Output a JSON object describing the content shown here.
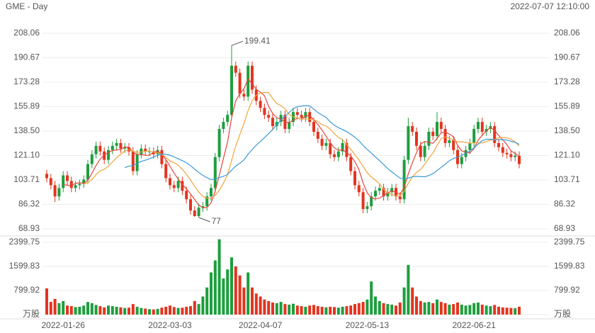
{
  "header": {
    "title": "GME - Day",
    "timestamp": "2022-07-07 12:10:00"
  },
  "chart_data": {
    "type": "candlestick",
    "up_color": "#1e9e3e",
    "down_color": "#e3341f",
    "grid": true,
    "ylim": [
      68.93,
      208.06
    ],
    "yticks": [
      208.06,
      190.67,
      173.28,
      155.89,
      {
        "value": 138.5,
        "label": "138.50"
      },
      {
        "value": 121.1,
        "label": "121.10"
      },
      103.71,
      86.32,
      68.93
    ],
    "volume_ylim": [
      0,
      2399.75
    ],
    "volume_yticks": [
      2399.75,
      1599.83,
      799.92,
      {
        "value": 0,
        "label": "万股"
      }
    ],
    "categories": [
      null,
      null,
      null,
      null,
      "2022-01-26",
      null,
      null,
      null,
      null,
      null,
      null,
      null,
      null,
      null,
      null,
      null,
      null,
      null,
      null,
      null,
      null,
      null,
      null,
      null,
      null,
      null,
      null,
      null,
      null,
      null,
      "2022-03-03",
      null,
      null,
      null,
      null,
      null,
      null,
      null,
      null,
      null,
      null,
      null,
      null,
      null,
      null,
      null,
      null,
      null,
      null,
      null,
      null,
      null,
      "2022-04-07",
      null,
      null,
      null,
      null,
      null,
      null,
      null,
      null,
      null,
      null,
      null,
      null,
      null,
      null,
      null,
      null,
      null,
      null,
      null,
      null,
      null,
      null,
      null,
      null,
      null,
      "2022-05-13",
      null,
      null,
      null,
      null,
      null,
      null,
      null,
      null,
      null,
      null,
      null,
      null,
      null,
      null,
      null,
      null,
      null,
      null,
      null,
      null,
      null,
      null,
      null,
      null,
      null,
      "2022-06-21",
      null,
      null,
      null,
      null,
      null,
      null,
      null,
      null,
      null,
      null,
      null
    ],
    "candles": [
      [
        108,
        111,
        102,
        105
      ],
      [
        105,
        108,
        97,
        100
      ],
      [
        100,
        103,
        88,
        92
      ],
      [
        92,
        101,
        89,
        98
      ],
      [
        98,
        110,
        95,
        107
      ],
      [
        107,
        110,
        100,
        103
      ],
      [
        103,
        106,
        95,
        98
      ],
      [
        98,
        103,
        95,
        100
      ],
      [
        100,
        104,
        97,
        101
      ],
      [
        101,
        107,
        98,
        104
      ],
      [
        104,
        118,
        101,
        115
      ],
      [
        115,
        125,
        112,
        122
      ],
      [
        122,
        131,
        119,
        128
      ],
      [
        128,
        131,
        121,
        124
      ],
      [
        124,
        127,
        115,
        118
      ],
      [
        118,
        128,
        115,
        125
      ],
      [
        125,
        131,
        122,
        128
      ],
      [
        128,
        133,
        125,
        130
      ],
      [
        130,
        133,
        123,
        126
      ],
      [
        126,
        130,
        123,
        127
      ],
      [
        127,
        130,
        121,
        124
      ],
      [
        124,
        127,
        107,
        110
      ],
      [
        110,
        125,
        107,
        122
      ],
      [
        122,
        129,
        119,
        126
      ],
      [
        126,
        129,
        121,
        124
      ],
      [
        124,
        127,
        121,
        124
      ],
      [
        124,
        127,
        119,
        122
      ],
      [
        122,
        128,
        119,
        125
      ],
      [
        125,
        128,
        112,
        115
      ],
      [
        115,
        118,
        102,
        105
      ],
      [
        105,
        108,
        97,
        100
      ],
      [
        100,
        103,
        95,
        98
      ],
      [
        98,
        106,
        95,
        103
      ],
      [
        103,
        106,
        93,
        96
      ],
      [
        96,
        99,
        87,
        90
      ],
      [
        90,
        93,
        79,
        82
      ],
      [
        82,
        85,
        77.58,
        78
      ],
      [
        78,
        87,
        77,
        84
      ],
      [
        84,
        88,
        81,
        85
      ],
      [
        85,
        95,
        82,
        92
      ],
      [
        92,
        101,
        89,
        98
      ],
      [
        98,
        123,
        95,
        120
      ],
      [
        120,
        143,
        117,
        140
      ],
      [
        140,
        148,
        137,
        145
      ],
      [
        145,
        153,
        142,
        150
      ],
      [
        150,
        199.41,
        147,
        185
      ],
      [
        185,
        188,
        177,
        180
      ],
      [
        180,
        183,
        162,
        165
      ],
      [
        165,
        168,
        160,
        163
      ],
      [
        163,
        188,
        160,
        185
      ],
      [
        185,
        188,
        165,
        168
      ],
      [
        168,
        171,
        157,
        160
      ],
      [
        160,
        163,
        152,
        155
      ],
      [
        155,
        158,
        147,
        150
      ],
      [
        150,
        153,
        145,
        148
      ],
      [
        148,
        151,
        139,
        142
      ],
      [
        142,
        148,
        139,
        145
      ],
      [
        145,
        153,
        142,
        150
      ],
      [
        150,
        153,
        137,
        140
      ],
      [
        140,
        148,
        137,
        145
      ],
      [
        145,
        155,
        142,
        152
      ],
      [
        152,
        155,
        147,
        150
      ],
      [
        150,
        153,
        145,
        148
      ],
      [
        148,
        155,
        145,
        152
      ],
      [
        152,
        155,
        142,
        145
      ],
      [
        145,
        148,
        135,
        138
      ],
      [
        138,
        141,
        130,
        133
      ],
      [
        133,
        136,
        125,
        128
      ],
      [
        128,
        133,
        125,
        130
      ],
      [
        130,
        133,
        119,
        122
      ],
      [
        122,
        125,
        117,
        120
      ],
      [
        120,
        127,
        117,
        124
      ],
      [
        124,
        133,
        121,
        130
      ],
      [
        130,
        133,
        117,
        120
      ],
      [
        120,
        123,
        107,
        110
      ],
      [
        110,
        113,
        97,
        100
      ],
      [
        100,
        103,
        92,
        95
      ],
      [
        95,
        98,
        80,
        83
      ],
      [
        83,
        88,
        80,
        85
      ],
      [
        85,
        95,
        82,
        92
      ],
      [
        92,
        99,
        89,
        96
      ],
      [
        96,
        101,
        93,
        98
      ],
      [
        98,
        101,
        89,
        92
      ],
      [
        92,
        98,
        89,
        95
      ],
      [
        95,
        101,
        92,
        98
      ],
      [
        98,
        101,
        89,
        92
      ],
      [
        92,
        95,
        87,
        90
      ],
      [
        90,
        121,
        87,
        118
      ],
      [
        118,
        148,
        115,
        142
      ],
      [
        142,
        145,
        135,
        138
      ],
      [
        138,
        141,
        125,
        128
      ],
      [
        128,
        131,
        117,
        120
      ],
      [
        120,
        131,
        117,
        128
      ],
      [
        128,
        141,
        125,
        138
      ],
      [
        138,
        141,
        132,
        135
      ],
      [
        135,
        152,
        132,
        145
      ],
      [
        145,
        148,
        137,
        140
      ],
      [
        140,
        143,
        127,
        130
      ],
      [
        130,
        135,
        127,
        132
      ],
      [
        132,
        135,
        122,
        125
      ],
      [
        125,
        128,
        112,
        115
      ],
      [
        115,
        123,
        112,
        120
      ],
      [
        120,
        128,
        117,
        125
      ],
      [
        125,
        133,
        122,
        130
      ],
      [
        130,
        143,
        127,
        140
      ],
      [
        140,
        148,
        137,
        145
      ],
      [
        145,
        148,
        135,
        138
      ],
      [
        138,
        143,
        135,
        140
      ],
      [
        140,
        145,
        137,
        142
      ],
      [
        142,
        145,
        127,
        130
      ],
      [
        130,
        133,
        124,
        127
      ],
      [
        127,
        130,
        120,
        123
      ],
      [
        123,
        126,
        119,
        122
      ],
      [
        122,
        125,
        117,
        120
      ],
      [
        120,
        124,
        117,
        121
      ],
      [
        121,
        124,
        112,
        115
      ]
    ],
    "volume": [
      870,
      420,
      520,
      380,
      450,
      300,
      280,
      250,
      260,
      300,
      420,
      380,
      320,
      280,
      240,
      300,
      280,
      260,
      240,
      220,
      230,
      350,
      260,
      220,
      200,
      180,
      170,
      190,
      230,
      260,
      300,
      250,
      220,
      230,
      260,
      280,
      450,
      350,
      600,
      900,
      1400,
      1800,
      2500,
      1200,
      1500,
      1900,
      1600,
      1300,
      900,
      1400,
      900,
      700,
      600,
      500,
      450,
      400,
      380,
      420,
      350,
      330,
      360,
      300,
      280,
      260,
      300,
      320,
      280,
      260,
      240,
      260,
      250,
      230,
      260,
      280,
      300,
      350,
      380,
      420,
      500,
      1100,
      600,
      450,
      380,
      350,
      330,
      300,
      400,
      900,
      1650,
      900,
      600,
      450,
      400,
      420,
      380,
      500,
      420,
      380,
      330,
      350,
      400,
      330,
      300,
      320,
      380,
      400,
      330,
      300,
      280,
      320,
      260,
      240,
      230,
      220,
      210,
      260
    ],
    "lines": [
      {
        "color": "#e8453c",
        "values": [
          null,
          null,
          null,
          null,
          100.4,
          100,
          99.6,
          101.2,
          101.8,
          101.2,
          103.6,
          108.4,
          114,
          118.6,
          121.4,
          123.4,
          124.6,
          125,
          125.4,
          127.2,
          127,
          123.4,
          121.8,
          121.8,
          121.2,
          121.2,
          123.6,
          124.2,
          122,
          118.2,
          113.4,
          108.6,
          104.2,
          100.4,
          97.4,
          93.8,
          89.8,
          86,
          83.8,
          84.2,
          87.4,
          95.8,
          107,
          119,
          130.6,
          148,
          160,
          165,
          168.6,
          175.6,
          172.2,
          168.2,
          166.2,
          163.6,
          156.2,
          151,
          148,
          147,
          145,
          144.4,
          146.4,
          147.4,
          147,
          149.4,
          149.4,
          146.6,
          143.2,
          139.2,
          134.8,
          130.2,
          126.6,
          124.8,
          125.2,
          123.2,
          120.8,
          116.8,
          111,
          101.6,
          94.6,
          91,
          90.2,
          90.8,
          92.6,
          94.6,
          95.8,
          95,
          93.4,
          98.6,
          108,
          116,
          123.2,
          129.2,
          131.2,
          130.4,
          129.8,
          133.2,
          137.2,
          137.6,
          136.4,
          134.4,
          128.4,
          124.4,
          123.4,
          123,
          126,
          132,
          135.6,
          138.6,
          141,
          139,
          135.4,
          132.4,
          128.8,
          124.4,
          122.6,
          120.2
        ]
      },
      {
        "color": "#f2a33a",
        "values": [
          null,
          null,
          null,
          null,
          null,
          null,
          null,
          null,
          null,
          100.8,
          101.8,
          104,
          107.6,
          110.2,
          111.3,
          113.5,
          116.5,
          119.5,
          122,
          124.3,
          125.2,
          124,
          123.4,
          123.6,
          124.2,
          124.1,
          123.5,
          123,
          121.9,
          119.7,
          117.3,
          116.1,
          114.2,
          111.2,
          107.8,
          103.6,
          99.2,
          95.1,
          92.1,
          90.8,
          90.6,
          92.8,
          96.5,
          101.4,
          107.4,
          117.7,
          127.9,
          136,
          143.8,
          153.1,
          160.1,
          164.1,
          165.6,
          166.1,
          165.9,
          161.6,
          158.1,
          156.6,
          154.3,
          150.3,
          148.7,
          147.7,
          147,
          147.2,
          146.9,
          146.5,
          145.3,
          143.1,
          142.1,
          139.8,
          136.6,
          134,
          132.2,
          129,
          125.5,
          121.7,
          117.9,
          113.4,
          108.9,
          105.9,
          103.5,
          100.9,
          97.1,
          94.6,
          93.4,
          92.6,
          92.1,
          95.6,
          101.3,
          105.9,
          109.1,
          111.3,
          114.9,
          119.2,
          122.9,
          128.2,
          133.2,
          134.4,
          133.4,
          132.1,
          130.8,
          130.8,
          130.5,
          129.7,
          130.2,
          130.2,
          130,
          131,
          132,
          132.5,
          133.7,
          134,
          133.7,
          132.7,
          130.8,
          127.8
        ]
      },
      {
        "color": "#3a9ad9",
        "values": [
          null,
          null,
          null,
          null,
          null,
          null,
          null,
          null,
          null,
          null,
          null,
          null,
          null,
          null,
          null,
          null,
          null,
          null,
          null,
          112.6,
          113.5,
          114,
          115.5,
          116.9,
          117.8,
          118.8,
          120,
          121.3,
          122,
          122,
          121.3,
          120.1,
          118.8,
          117.4,
          116,
          113.9,
          111.4,
          109.1,
          107,
          105.3,
          104,
          104.5,
          105.4,
          106.3,
          107.6,
          110.7,
          113.6,
          115.6,
          118,
          122,
          125.4,
          128.5,
          131.1,
          133.8,
          136.7,
          139.7,
          143,
          146.3,
          149.1,
          151.7,
          154.4,
          155.9,
          156.3,
          156.7,
          156.4,
          154.1,
          151.7,
          149.9,
          148.2,
          145.1,
          142.7,
          140.9,
          139.6,
          138.1,
          136.2,
          134.1,
          131.6,
          128.3,
          125.5,
          122.9,
          120.1,
          117.5,
          114.7,
          111.8,
          109.5,
          107.2,
          105,
          104.5,
          105.1,
          105.9,
          106.3,
          106.1,
          106,
          106.9,
          108.2,
          110.4,
          112.7,
          115,
          117.4,
          119,
          120,
          121.1,
          122.7,
          124.5,
          126.6,
          129.2,
          131.6,
          132.7,
          132.7,
          132.3,
          132.3,
          132.4,
          132.1,
          131.2,
          130.5,
          129
        ]
      }
    ]
  }
}
